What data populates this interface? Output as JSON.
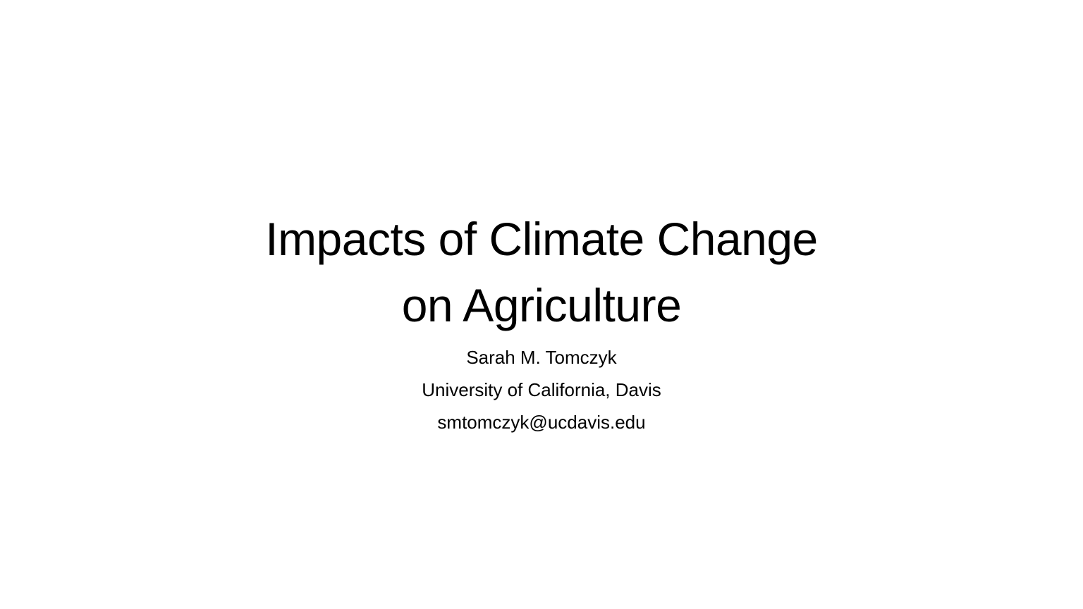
{
  "slide": {
    "title_lines": [
      "Impacts of Climate Change",
      "on Agriculture"
    ],
    "author": "Sarah M. Tomczyk",
    "affiliation": "University of California, Davis",
    "email": "smtomczyk@ucdavis.edu"
  }
}
